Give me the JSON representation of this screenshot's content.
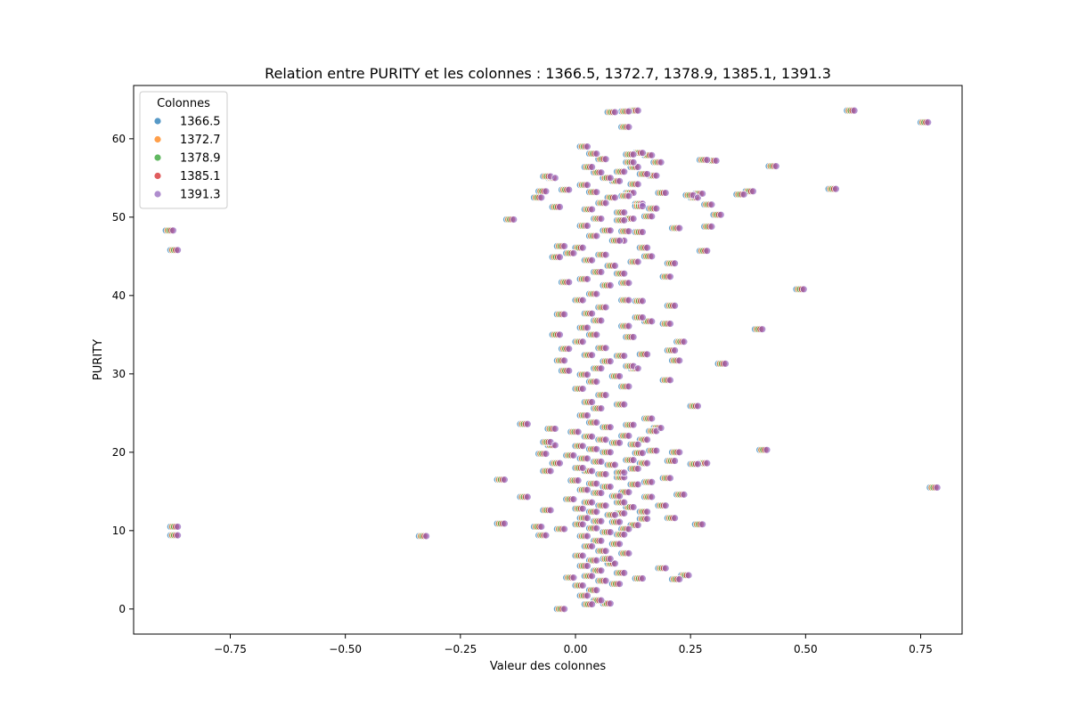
{
  "chart_data": {
    "type": "scatter",
    "title": "Relation entre PURITY et les colonnes : 1366.5, 1372.7, 1378.9, 1385.1, 1391.3",
    "xlabel": "Valeur des colonnes",
    "ylabel": "PURITY",
    "xlim": [
      -0.96,
      0.84
    ],
    "ylim": [
      -3.2,
      66.8
    ],
    "x_ticks": [
      -0.75,
      -0.5,
      -0.25,
      0.0,
      0.25,
      0.5,
      0.75
    ],
    "x_tick_labels": [
      "−0.75",
      "−0.50",
      "−0.25",
      "0.00",
      "0.25",
      "0.50",
      "0.75"
    ],
    "y_ticks": [
      0,
      10,
      20,
      30,
      40,
      50,
      60
    ],
    "y_tick_labels": [
      "0",
      "10",
      "20",
      "30",
      "40",
      "50",
      "60"
    ],
    "grid": false,
    "legend": {
      "title": "Colonnes",
      "placement": "top-left",
      "entries": [
        "1366.5",
        "1372.7",
        "1378.9",
        "1385.1",
        "1391.3"
      ]
    },
    "series": [
      {
        "name": "1366.5",
        "color": "#1f77b4",
        "offset": 0.0
      },
      {
        "name": "1372.7",
        "color": "#ff7f0e",
        "offset": 0.004
      },
      {
        "name": "1378.9",
        "color": "#2ca02c",
        "offset": 0.008
      },
      {
        "name": "1385.1",
        "color": "#d62728",
        "offset": 0.012
      },
      {
        "name": "1391.3",
        "color": "#9467bd",
        "offset": 0.016
      }
    ],
    "points": [
      [
        0.59,
        63.6
      ],
      [
        0.75,
        62.1
      ],
      [
        0.42,
        56.5
      ],
      [
        0.55,
        53.6
      ],
      [
        0.27,
        57.3
      ],
      [
        0.29,
        57.2
      ],
      [
        0.24,
        52.8
      ],
      [
        0.25,
        52.5
      ],
      [
        0.26,
        53.0
      ],
      [
        0.28,
        51.6
      ],
      [
        0.3,
        50.3
      ],
      [
        0.28,
        48.8
      ],
      [
        0.35,
        52.9
      ],
      [
        0.37,
        53.3
      ],
      [
        0.27,
        45.7
      ],
      [
        0.48,
        40.8
      ],
      [
        0.39,
        35.7
      ],
      [
        0.31,
        31.3
      ],
      [
        0.4,
        20.3
      ],
      [
        0.25,
        25.9
      ],
      [
        0.77,
        15.5
      ],
      [
        0.26,
        10.8
      ],
      [
        0.27,
        18.6
      ],
      [
        0.25,
        18.5
      ],
      [
        0.2,
        44.1
      ],
      [
        0.19,
        42.4
      ],
      [
        0.21,
        48.6
      ],
      [
        0.2,
        38.7
      ],
      [
        0.19,
        36.4
      ],
      [
        0.22,
        34.1
      ],
      [
        0.2,
        33.0
      ],
      [
        0.21,
        31.7
      ],
      [
        0.19,
        29.2
      ],
      [
        0.21,
        20.0
      ],
      [
        0.2,
        18.9
      ],
      [
        0.19,
        16.7
      ],
      [
        0.22,
        14.6
      ],
      [
        0.18,
        13.2
      ],
      [
        0.2,
        11.6
      ],
      [
        0.21,
        3.8
      ],
      [
        0.23,
        4.3
      ],
      [
        0.18,
        5.2
      ],
      [
        0.12,
        63.6
      ],
      [
        0.1,
        63.5
      ],
      [
        0.07,
        63.4
      ],
      [
        0.1,
        61.5
      ],
      [
        0.11,
        58.0
      ],
      [
        0.13,
        58.2
      ],
      [
        0.15,
        57.9
      ],
      [
        0.17,
        57.0
      ],
      [
        0.12,
        56.4
      ],
      [
        0.14,
        55.5
      ],
      [
        0.16,
        55.3
      ],
      [
        0.11,
        53.1
      ],
      [
        0.18,
        53.1
      ],
      [
        0.13,
        51.7
      ],
      [
        0.16,
        51.1
      ],
      [
        0.11,
        49.8
      ],
      [
        0.15,
        50.1
      ],
      [
        0.1,
        48.2
      ],
      [
        0.13,
        48.1
      ],
      [
        0.09,
        47.0
      ],
      [
        0.14,
        46.1
      ],
      [
        0.15,
        45.0
      ],
      [
        0.09,
        42.8
      ],
      [
        0.13,
        39.3
      ],
      [
        0.1,
        39.4
      ],
      [
        0.1,
        36.1
      ],
      [
        0.13,
        37.2
      ],
      [
        0.15,
        36.7
      ],
      [
        0.14,
        32.5
      ],
      [
        0.11,
        31.0
      ],
      [
        0.09,
        32.3
      ],
      [
        0.12,
        30.7
      ],
      [
        0.15,
        24.3
      ],
      [
        0.16,
        22.7
      ],
      [
        0.14,
        21.6
      ],
      [
        0.17,
        23.1
      ],
      [
        0.13,
        19.9
      ],
      [
        0.16,
        20.2
      ],
      [
        0.14,
        18.6
      ],
      [
        0.15,
        16.2
      ],
      [
        0.12,
        17.9
      ],
      [
        0.15,
        14.3
      ],
      [
        0.14,
        11.5
      ],
      [
        0.14,
        12.4
      ],
      [
        0.09,
        13.6
      ],
      [
        0.08,
        11.1
      ],
      [
        0.1,
        10.2
      ],
      [
        0.09,
        9.5
      ],
      [
        0.06,
        6.4
      ],
      [
        0.13,
        3.9
      ],
      [
        0.08,
        3.2
      ],
      [
        0.06,
        0.7
      ],
      [
        -0.04,
        0.0
      ],
      [
        -0.15,
        49.7
      ],
      [
        -0.07,
        55.2
      ],
      [
        -0.08,
        53.3
      ],
      [
        -0.09,
        52.5
      ],
      [
        -0.06,
        55.0
      ],
      [
        -0.05,
        51.3
      ],
      [
        -0.03,
        53.5
      ],
      [
        -0.04,
        46.3
      ],
      [
        -0.05,
        44.9
      ],
      [
        -0.02,
        45.4
      ],
      [
        -0.03,
        41.7
      ],
      [
        -0.04,
        37.6
      ],
      [
        -0.05,
        35.0
      ],
      [
        -0.03,
        33.2
      ],
      [
        -0.04,
        31.7
      ],
      [
        -0.03,
        30.4
      ],
      [
        -0.12,
        23.6
      ],
      [
        -0.06,
        23.0
      ],
      [
        -0.07,
        21.3
      ],
      [
        -0.06,
        20.9
      ],
      [
        -0.08,
        19.8
      ],
      [
        -0.05,
        18.6
      ],
      [
        -0.07,
        17.6
      ],
      [
        -0.17,
        16.5
      ],
      [
        -0.12,
        14.3
      ],
      [
        -0.07,
        12.6
      ],
      [
        -0.09,
        10.5
      ],
      [
        -0.08,
        9.4
      ],
      [
        -0.17,
        10.9
      ],
      [
        -0.04,
        10.2
      ],
      [
        -0.34,
        9.3
      ],
      [
        -0.02,
        4.0
      ],
      [
        -0.89,
        48.3
      ],
      [
        -0.88,
        45.8
      ],
      [
        -0.88,
        10.5
      ],
      [
        -0.88,
        9.4
      ],
      [
        0.01,
        59.0
      ],
      [
        0.03,
        58.1
      ],
      [
        0.05,
        57.4
      ],
      [
        0.02,
        56.4
      ],
      [
        0.04,
        55.7
      ],
      [
        0.06,
        55.0
      ],
      [
        0.08,
        54.6
      ],
      [
        0.01,
        54.1
      ],
      [
        0.03,
        53.2
      ],
      [
        0.07,
        52.5
      ],
      [
        0.05,
        51.8
      ],
      [
        0.02,
        51.0
      ],
      [
        0.09,
        50.6
      ],
      [
        0.04,
        49.8
      ],
      [
        0.01,
        48.9
      ],
      [
        0.06,
        48.3
      ],
      [
        0.03,
        47.6
      ],
      [
        0.08,
        47.0
      ],
      [
        0.0,
        46.1
      ],
      [
        0.05,
        45.2
      ],
      [
        0.02,
        44.5
      ],
      [
        0.07,
        43.8
      ],
      [
        0.04,
        43.0
      ],
      [
        0.01,
        42.1
      ],
      [
        0.06,
        41.3
      ],
      [
        0.03,
        40.2
      ],
      [
        0.0,
        39.4
      ],
      [
        0.05,
        38.5
      ],
      [
        0.02,
        37.7
      ],
      [
        0.04,
        36.8
      ],
      [
        0.01,
        35.9
      ],
      [
        0.03,
        35.0
      ],
      [
        0.0,
        34.1
      ],
      [
        0.05,
        33.3
      ],
      [
        0.02,
        32.4
      ],
      [
        0.06,
        31.6
      ],
      [
        0.04,
        30.7
      ],
      [
        0.01,
        29.9
      ],
      [
        0.03,
        29.0
      ],
      [
        0.0,
        28.1
      ],
      [
        0.05,
        27.3
      ],
      [
        0.02,
        26.4
      ],
      [
        0.04,
        25.6
      ],
      [
        0.01,
        24.7
      ],
      [
        0.03,
        23.8
      ],
      [
        0.06,
        23.2
      ],
      [
        -0.01,
        22.6
      ],
      [
        0.02,
        22.0
      ],
      [
        0.05,
        21.6
      ],
      [
        0.08,
        21.2
      ],
      [
        0.0,
        20.8
      ],
      [
        0.03,
        20.4
      ],
      [
        0.06,
        20.0
      ],
      [
        -0.02,
        19.6
      ],
      [
        0.01,
        19.2
      ],
      [
        0.04,
        18.8
      ],
      [
        0.07,
        18.4
      ],
      [
        0.0,
        18.0
      ],
      [
        0.02,
        17.6
      ],
      [
        0.05,
        17.2
      ],
      [
        0.09,
        16.8
      ],
      [
        -0.01,
        16.4
      ],
      [
        0.03,
        16.0
      ],
      [
        0.06,
        15.6
      ],
      [
        0.01,
        15.2
      ],
      [
        0.04,
        14.8
      ],
      [
        0.08,
        14.4
      ],
      [
        -0.02,
        14.0
      ],
      [
        0.02,
        13.6
      ],
      [
        0.05,
        13.2
      ],
      [
        0.0,
        12.8
      ],
      [
        0.03,
        12.4
      ],
      [
        0.07,
        12.0
      ],
      [
        0.01,
        11.6
      ],
      [
        0.04,
        11.2
      ],
      [
        0.0,
        10.8
      ],
      [
        0.03,
        10.3
      ],
      [
        0.06,
        9.8
      ],
      [
        0.01,
        9.3
      ],
      [
        0.04,
        8.7
      ],
      [
        0.02,
        8.0
      ],
      [
        0.05,
        7.4
      ],
      [
        0.0,
        6.8
      ],
      [
        0.03,
        6.2
      ],
      [
        0.01,
        5.5
      ],
      [
        0.04,
        4.9
      ],
      [
        0.02,
        4.2
      ],
      [
        0.05,
        3.6
      ],
      [
        0.0,
        3.0
      ],
      [
        0.03,
        2.4
      ],
      [
        0.01,
        1.7
      ],
      [
        0.04,
        1.1
      ],
      [
        0.02,
        0.6
      ],
      [
        0.11,
        57.0
      ],
      [
        0.09,
        55.8
      ],
      [
        0.12,
        54.2
      ],
      [
        0.1,
        52.7
      ],
      [
        0.13,
        51.4
      ],
      [
        0.09,
        49.6
      ],
      [
        0.12,
        44.3
      ],
      [
        0.1,
        41.6
      ],
      [
        0.11,
        34.7
      ],
      [
        0.08,
        29.7
      ],
      [
        0.1,
        28.4
      ],
      [
        0.09,
        26.1
      ],
      [
        0.11,
        23.5
      ],
      [
        0.1,
        22.1
      ],
      [
        0.12,
        21.0
      ],
      [
        0.11,
        19.0
      ],
      [
        0.09,
        17.4
      ],
      [
        0.12,
        15.9
      ],
      [
        0.1,
        14.9
      ],
      [
        0.11,
        13.0
      ],
      [
        0.09,
        12.2
      ],
      [
        0.12,
        10.7
      ],
      [
        0.08,
        8.3
      ],
      [
        0.1,
        7.1
      ],
      [
        0.07,
        5.8
      ],
      [
        0.09,
        4.6
      ]
    ]
  }
}
